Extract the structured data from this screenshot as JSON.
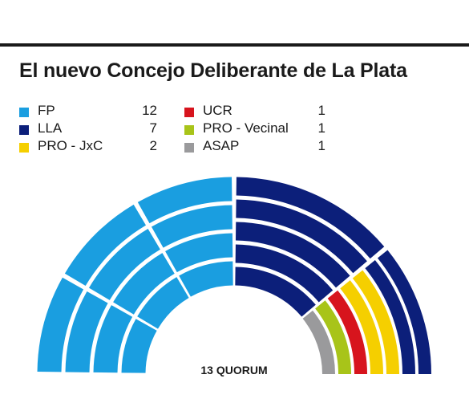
{
  "title": "El nuevo Concejo Deliberante de La Plata",
  "chart_data": {
    "type": "parliament",
    "total_seats": 24,
    "rows": 5,
    "series": [
      {
        "name": "FP",
        "value": 12,
        "color": "#1a9ee0"
      },
      {
        "name": "LLA",
        "value": 7,
        "color": "#0c1f7a"
      },
      {
        "name": "PRO - JxC",
        "value": 2,
        "color": "#f5cf00"
      },
      {
        "name": "UCR",
        "value": 1,
        "color": "#d7141d"
      },
      {
        "name": "PRO - Vecinal",
        "value": 1,
        "color": "#a8c419"
      },
      {
        "name": "ASAP",
        "value": 1,
        "color": "#9a9a9c"
      }
    ],
    "annotation": "13 QUORUM"
  }
}
